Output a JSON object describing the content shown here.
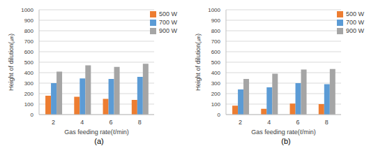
{
  "chart_data": [
    {
      "type": "bar",
      "title": "(a)",
      "xlabel": "Gas feeding rate(ℓ/min)",
      "ylabel": "Height of dilution(㎛)",
      "categories": [
        "2",
        "4",
        "6",
        "8"
      ],
      "series": [
        {
          "name": "500 W",
          "color": "#ed7d31",
          "values": [
            180,
            170,
            150,
            140
          ]
        },
        {
          "name": "700 W",
          "color": "#5b9bd5",
          "values": [
            300,
            345,
            340,
            360
          ]
        },
        {
          "name": "900 W",
          "color": "#a5a5a5",
          "values": [
            410,
            470,
            455,
            485
          ]
        }
      ],
      "ylim": [
        0,
        1000
      ],
      "yticks": [
        0,
        100,
        200,
        300,
        400,
        500,
        600,
        700,
        800,
        900,
        1000
      ],
      "grid": true,
      "legend": "upper right"
    },
    {
      "type": "bar",
      "title": "(b)",
      "xlabel": "Gas feeding rate(ℓ/min)",
      "ylabel": "Height of dilution(㎛)",
      "categories": [
        "2",
        "4",
        "6",
        "8"
      ],
      "series": [
        {
          "name": "500 W",
          "color": "#ed7d31",
          "values": [
            85,
            55,
            105,
            100
          ]
        },
        {
          "name": "700 W",
          "color": "#5b9bd5",
          "values": [
            240,
            260,
            300,
            290
          ]
        },
        {
          "name": "900 W",
          "color": "#a5a5a5",
          "values": [
            340,
            390,
            430,
            435
          ]
        }
      ],
      "ylim": [
        0,
        1000
      ],
      "yticks": [
        0,
        100,
        200,
        300,
        400,
        500,
        600,
        700,
        800,
        900,
        1000
      ],
      "grid": true,
      "legend": "upper right"
    }
  ]
}
